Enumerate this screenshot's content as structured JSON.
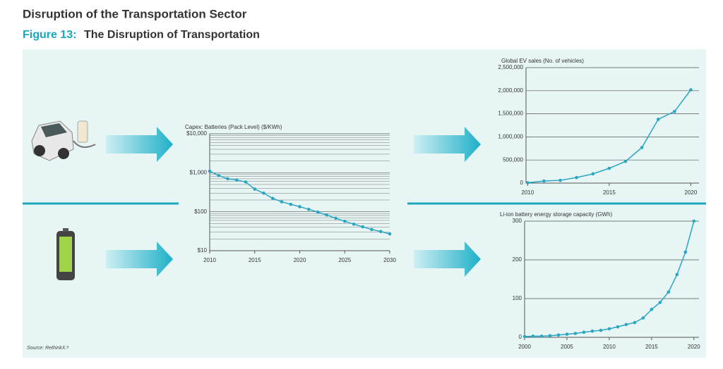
{
  "header": {
    "title": "Disruption of the Transportation Sector",
    "figure_label": "Figure 13:",
    "figure_title": "The Disruption of Transportation"
  },
  "source": "Source: RethinkX.⁸",
  "chart_data": [
    {
      "type": "line",
      "title": "Capex: Batteries (Pack Level) ($/KWh)",
      "log_y": true,
      "grid": true,
      "color": "#2aa6c2",
      "x": [
        2010,
        2011,
        2012,
        2013,
        2014,
        2015,
        2016,
        2017,
        2018,
        2019,
        2020,
        2021,
        2022,
        2023,
        2024,
        2025,
        2026,
        2027,
        2028,
        2029,
        2030
      ],
      "values": [
        1100,
        850,
        700,
        650,
        580,
        380,
        300,
        220,
        180,
        155,
        135,
        115,
        98,
        82,
        68,
        57,
        48,
        41,
        35,
        31,
        27
      ],
      "xlim": [
        2010,
        2030
      ],
      "xticks": [
        2010,
        2015,
        2020,
        2025,
        2030
      ],
      "ylim": [
        10,
        10000
      ],
      "yticks": [
        {
          "value": 10,
          "label": "$10"
        },
        {
          "value": 100,
          "label": "$100"
        },
        {
          "value": 1000,
          "label": "$1,000"
        },
        {
          "value": 10000,
          "label": "$10,000"
        }
      ]
    },
    {
      "type": "line",
      "title": "Global EV sales (No. of vehicles)",
      "log_y": false,
      "grid": true,
      "color": "#2aa6c2",
      "x": [
        2010,
        2011,
        2012,
        2013,
        2014,
        2015,
        2016,
        2017,
        2018,
        2019,
        2020
      ],
      "values": [
        7000,
        45000,
        60000,
        120000,
        200000,
        320000,
        470000,
        770000,
        1380000,
        1550000,
        2020000
      ],
      "xlim": [
        2009.9,
        2020.5
      ],
      "xticks": [
        2010,
        2015,
        2020
      ],
      "ylim": [
        0,
        2500000
      ],
      "yticks": [
        0,
        {
          "value": 500000,
          "label": "500,000"
        },
        {
          "value": 1000000,
          "label": "1,000,000"
        },
        {
          "value": 1500000,
          "label": "1,500,000"
        },
        {
          "value": 2000000,
          "label": "2,000,000"
        },
        {
          "value": 2500000,
          "label": "2,500,000"
        }
      ]
    },
    {
      "type": "line",
      "title": "Li-ion battery energy storage capacity (GWh)",
      "log_y": false,
      "grid": true,
      "color": "#2aa6c2",
      "x": [
        2000,
        2001,
        2002,
        2003,
        2004,
        2005,
        2006,
        2007,
        2008,
        2009,
        2010,
        2011,
        2012,
        2013,
        2014,
        2015,
        2016,
        2017,
        2018,
        2019,
        2020
      ],
      "values": [
        2,
        3,
        3,
        4,
        6,
        8,
        10,
        13,
        16,
        18,
        22,
        27,
        33,
        38,
        50,
        72,
        90,
        117,
        162,
        220,
        300
      ],
      "xlim": [
        2000,
        2020.6
      ],
      "xticks": [
        2000,
        2005,
        2010,
        2015,
        2020
      ],
      "ylim": [
        0,
        300
      ],
      "yticks": [
        0,
        100,
        200,
        300
      ]
    }
  ]
}
